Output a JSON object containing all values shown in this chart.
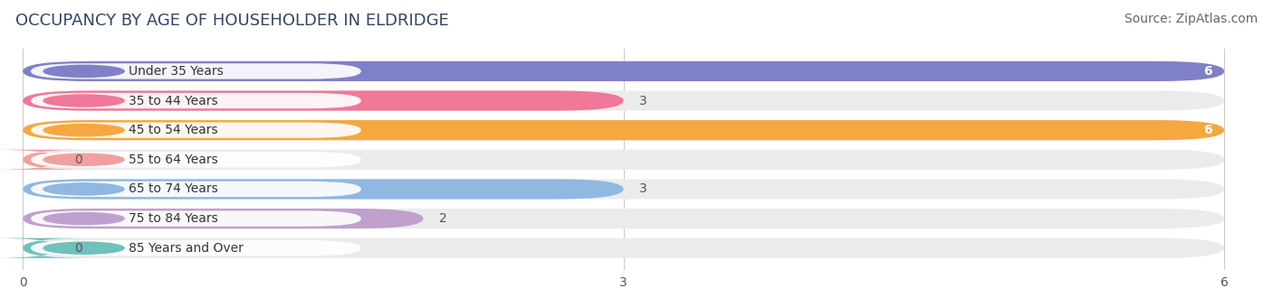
{
  "title": "OCCUPANCY BY AGE OF HOUSEHOLDER IN ELDRIDGE",
  "source": "Source: ZipAtlas.com",
  "categories": [
    "Under 35 Years",
    "35 to 44 Years",
    "45 to 54 Years",
    "55 to 64 Years",
    "65 to 74 Years",
    "75 to 84 Years",
    "85 Years and Over"
  ],
  "values": [
    6,
    3,
    6,
    0,
    3,
    2,
    0
  ],
  "bar_colors": [
    "#8080c8",
    "#f07898",
    "#f5a840",
    "#f0a0a0",
    "#90b8e0",
    "#c0a0cc",
    "#70c0bc"
  ],
  "bar_bg_color": "#ebebeb",
  "xlim": [
    0,
    6
  ],
  "xticks": [
    0,
    3,
    6
  ],
  "title_fontsize": 13,
  "source_fontsize": 10,
  "label_fontsize": 10,
  "value_fontsize": 10,
  "background_color": "#ffffff",
  "bar_height": 0.68,
  "bar_gap": 0.32
}
